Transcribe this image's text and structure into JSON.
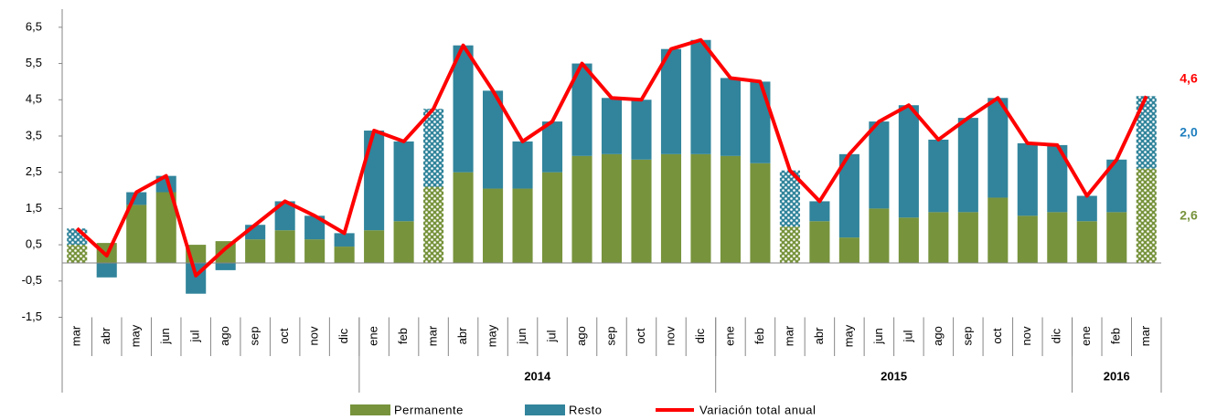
{
  "chart_data": {
    "type": "bar",
    "categories": [
      "mar",
      "abr",
      "may",
      "jun",
      "jul",
      "ago",
      "sep",
      "oct",
      "nov",
      "dic",
      "ene",
      "feb",
      "mar",
      "abr",
      "may",
      "jun",
      "jul",
      "ago",
      "sep",
      "oct",
      "nov",
      "dic",
      "ene",
      "feb",
      "mar",
      "abr",
      "may",
      "jun",
      "jul",
      "ago",
      "sep",
      "oct",
      "nov",
      "dic",
      "ene",
      "feb",
      "mar"
    ],
    "groups": [
      {
        "label": null,
        "count": 10
      },
      {
        "label": "2014",
        "count": 12
      },
      {
        "label": "2015",
        "count": 12
      },
      {
        "label": "2016",
        "count": 3
      }
    ],
    "hatched": [
      0,
      12,
      24,
      36
    ],
    "series": [
      {
        "name": "Permanente",
        "color": "#77933c",
        "values": [
          0.5,
          0.55,
          1.6,
          1.95,
          0.5,
          0.6,
          0.65,
          0.9,
          0.65,
          0.45,
          0.9,
          1.15,
          2.1,
          2.5,
          2.05,
          2.05,
          2.5,
          2.95,
          3.0,
          2.85,
          3.0,
          3.0,
          2.95,
          2.75,
          1.0,
          1.15,
          0.7,
          1.5,
          1.25,
          1.4,
          1.4,
          1.8,
          1.3,
          1.4,
          1.15,
          1.4,
          2.6
        ]
      },
      {
        "name": "Resto",
        "color": "#31849b",
        "values": [
          0.45,
          -0.4,
          0.35,
          0.45,
          -0.85,
          -0.2,
          0.4,
          0.8,
          0.65,
          0.37,
          2.75,
          2.2,
          2.15,
          3.5,
          2.7,
          1.3,
          1.4,
          2.55,
          1.55,
          1.65,
          2.9,
          3.15,
          2.15,
          2.25,
          1.55,
          0.55,
          2.3,
          2.4,
          3.1,
          2.0,
          2.6,
          2.75,
          2.0,
          1.85,
          0.7,
          1.45,
          2.0
        ]
      },
      {
        "name": "Variación total anual",
        "type": "line",
        "color": "#ff0000",
        "values": [
          0.95,
          0.2,
          1.95,
          2.4,
          -0.35,
          0.4,
          1.05,
          1.7,
          1.3,
          0.82,
          3.65,
          3.35,
          4.25,
          6.0,
          4.75,
          3.35,
          3.9,
          5.5,
          4.55,
          4.5,
          5.9,
          6.15,
          5.1,
          5.0,
          2.55,
          1.7,
          3.0,
          3.9,
          4.35,
          3.4,
          4.0,
          4.55,
          3.3,
          3.25,
          1.85,
          2.85,
          4.6
        ]
      }
    ],
    "ylim": [
      -1.5,
      7
    ],
    "yticks": [
      {
        "value": -1.5,
        "label": "-1,5"
      },
      {
        "value": -0.5,
        "label": "-0,5"
      },
      {
        "value": 0.5,
        "label": "0,5"
      },
      {
        "value": 1.5,
        "label": "1,5"
      },
      {
        "value": 2.5,
        "label": "2,5"
      },
      {
        "value": 3.5,
        "label": "3,5"
      },
      {
        "value": 4.5,
        "label": "4,5"
      },
      {
        "value": 5.5,
        "label": "5,5"
      },
      {
        "value": 6.5,
        "label": "6,5"
      }
    ],
    "annotations": [
      {
        "text": "4,6",
        "color": "#ff0000"
      },
      {
        "text": "2,0",
        "color": "#1f7fbf"
      },
      {
        "text": "2,6",
        "color": "#77933c"
      }
    ],
    "legend": "bottom"
  }
}
